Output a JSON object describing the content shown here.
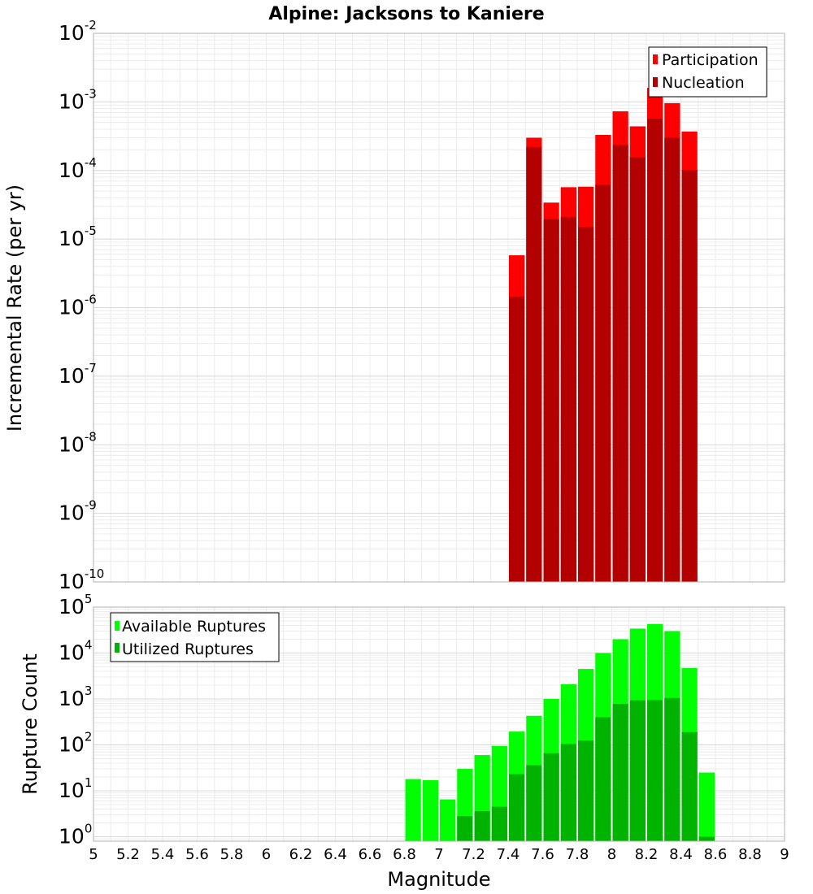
{
  "chart_data": [
    {
      "type": "bar",
      "title": "Alpine: Jacksons to Kaniere",
      "xlabel": "",
      "ylabel": "Incremental Rate (per yr)",
      "yscale": "log",
      "ylim": [
        1e-10,
        0.01
      ],
      "xlim": [
        5,
        9
      ],
      "grid": true,
      "legend_position": "top-right",
      "y_tick_labels": [
        {
          "base": "10",
          "exp": "-10"
        },
        {
          "base": "10",
          "exp": "-9"
        },
        {
          "base": "10",
          "exp": "-8"
        },
        {
          "base": "10",
          "exp": "-7"
        },
        {
          "base": "10",
          "exp": "-6"
        },
        {
          "base": "10",
          "exp": "-5"
        },
        {
          "base": "10",
          "exp": "-4"
        },
        {
          "base": "10",
          "exp": "-3"
        },
        {
          "base": "10",
          "exp": "-2"
        }
      ],
      "x": [
        7.45,
        7.55,
        7.65,
        7.75,
        7.85,
        7.95,
        8.05,
        8.15,
        8.25,
        8.35,
        8.45
      ],
      "series": [
        {
          "name": "Participation",
          "color": "#ff0000",
          "values": [
            5.8e-06,
            0.0003,
            3.4e-05,
            5.7e-05,
            5.8e-05,
            0.00033,
            0.00073,
            0.00044,
            0.0016,
            0.00096,
            0.00037
          ]
        },
        {
          "name": "Nucleation",
          "color": "#b30000",
          "values": [
            1.45e-06,
            0.00022,
            1.95e-05,
            2.1e-05,
            1.5e-05,
            6.2e-05,
            0.000235,
            0.000155,
            0.00057,
            0.0003,
            0.000102
          ]
        }
      ]
    },
    {
      "type": "bar",
      "title": "",
      "xlabel": "Magnitude",
      "ylabel": "Rupture Count",
      "yscale": "log",
      "ylim": [
        0.8,
        100000.0
      ],
      "xlim": [
        5,
        9
      ],
      "grid": true,
      "legend_position": "top-left",
      "y_tick_labels": [
        {
          "base": "10",
          "exp": "0"
        },
        {
          "base": "10",
          "exp": "1"
        },
        {
          "base": "10",
          "exp": "2"
        },
        {
          "base": "10",
          "exp": "3"
        },
        {
          "base": "10",
          "exp": "4"
        },
        {
          "base": "10",
          "exp": "5"
        }
      ],
      "x_tick_labels": [
        "5",
        "5.2",
        "5.4",
        "5.6",
        "5.8",
        "6",
        "6.2",
        "6.4",
        "6.6",
        "6.8",
        "7",
        "7.2",
        "7.4",
        "7.6",
        "7.8",
        "8",
        "8.2",
        "8.4",
        "8.6",
        "8.8",
        "9"
      ],
      "x": [
        6.85,
        6.95,
        7.05,
        7.15,
        7.25,
        7.35,
        7.45,
        7.55,
        7.65,
        7.75,
        7.85,
        7.95,
        8.05,
        8.15,
        8.25,
        8.35,
        8.45,
        8.55
      ],
      "series": [
        {
          "name": "Available Ruptures",
          "color": "#00ff00",
          "values": [
            18,
            17,
            6.5,
            30,
            60,
            95,
            195,
            430,
            1000,
            2100,
            4500,
            10000,
            20000,
            34000,
            43000,
            30000,
            4700,
            25
          ]
        },
        {
          "name": "Utilized Ruptures",
          "color": "#00b300",
          "values": [
            null,
            null,
            null,
            2.8,
            3.6,
            4.5,
            23,
            36,
            66,
            105,
            125,
            400,
            780,
            930,
            950,
            1050,
            190,
            1
          ]
        }
      ]
    }
  ]
}
